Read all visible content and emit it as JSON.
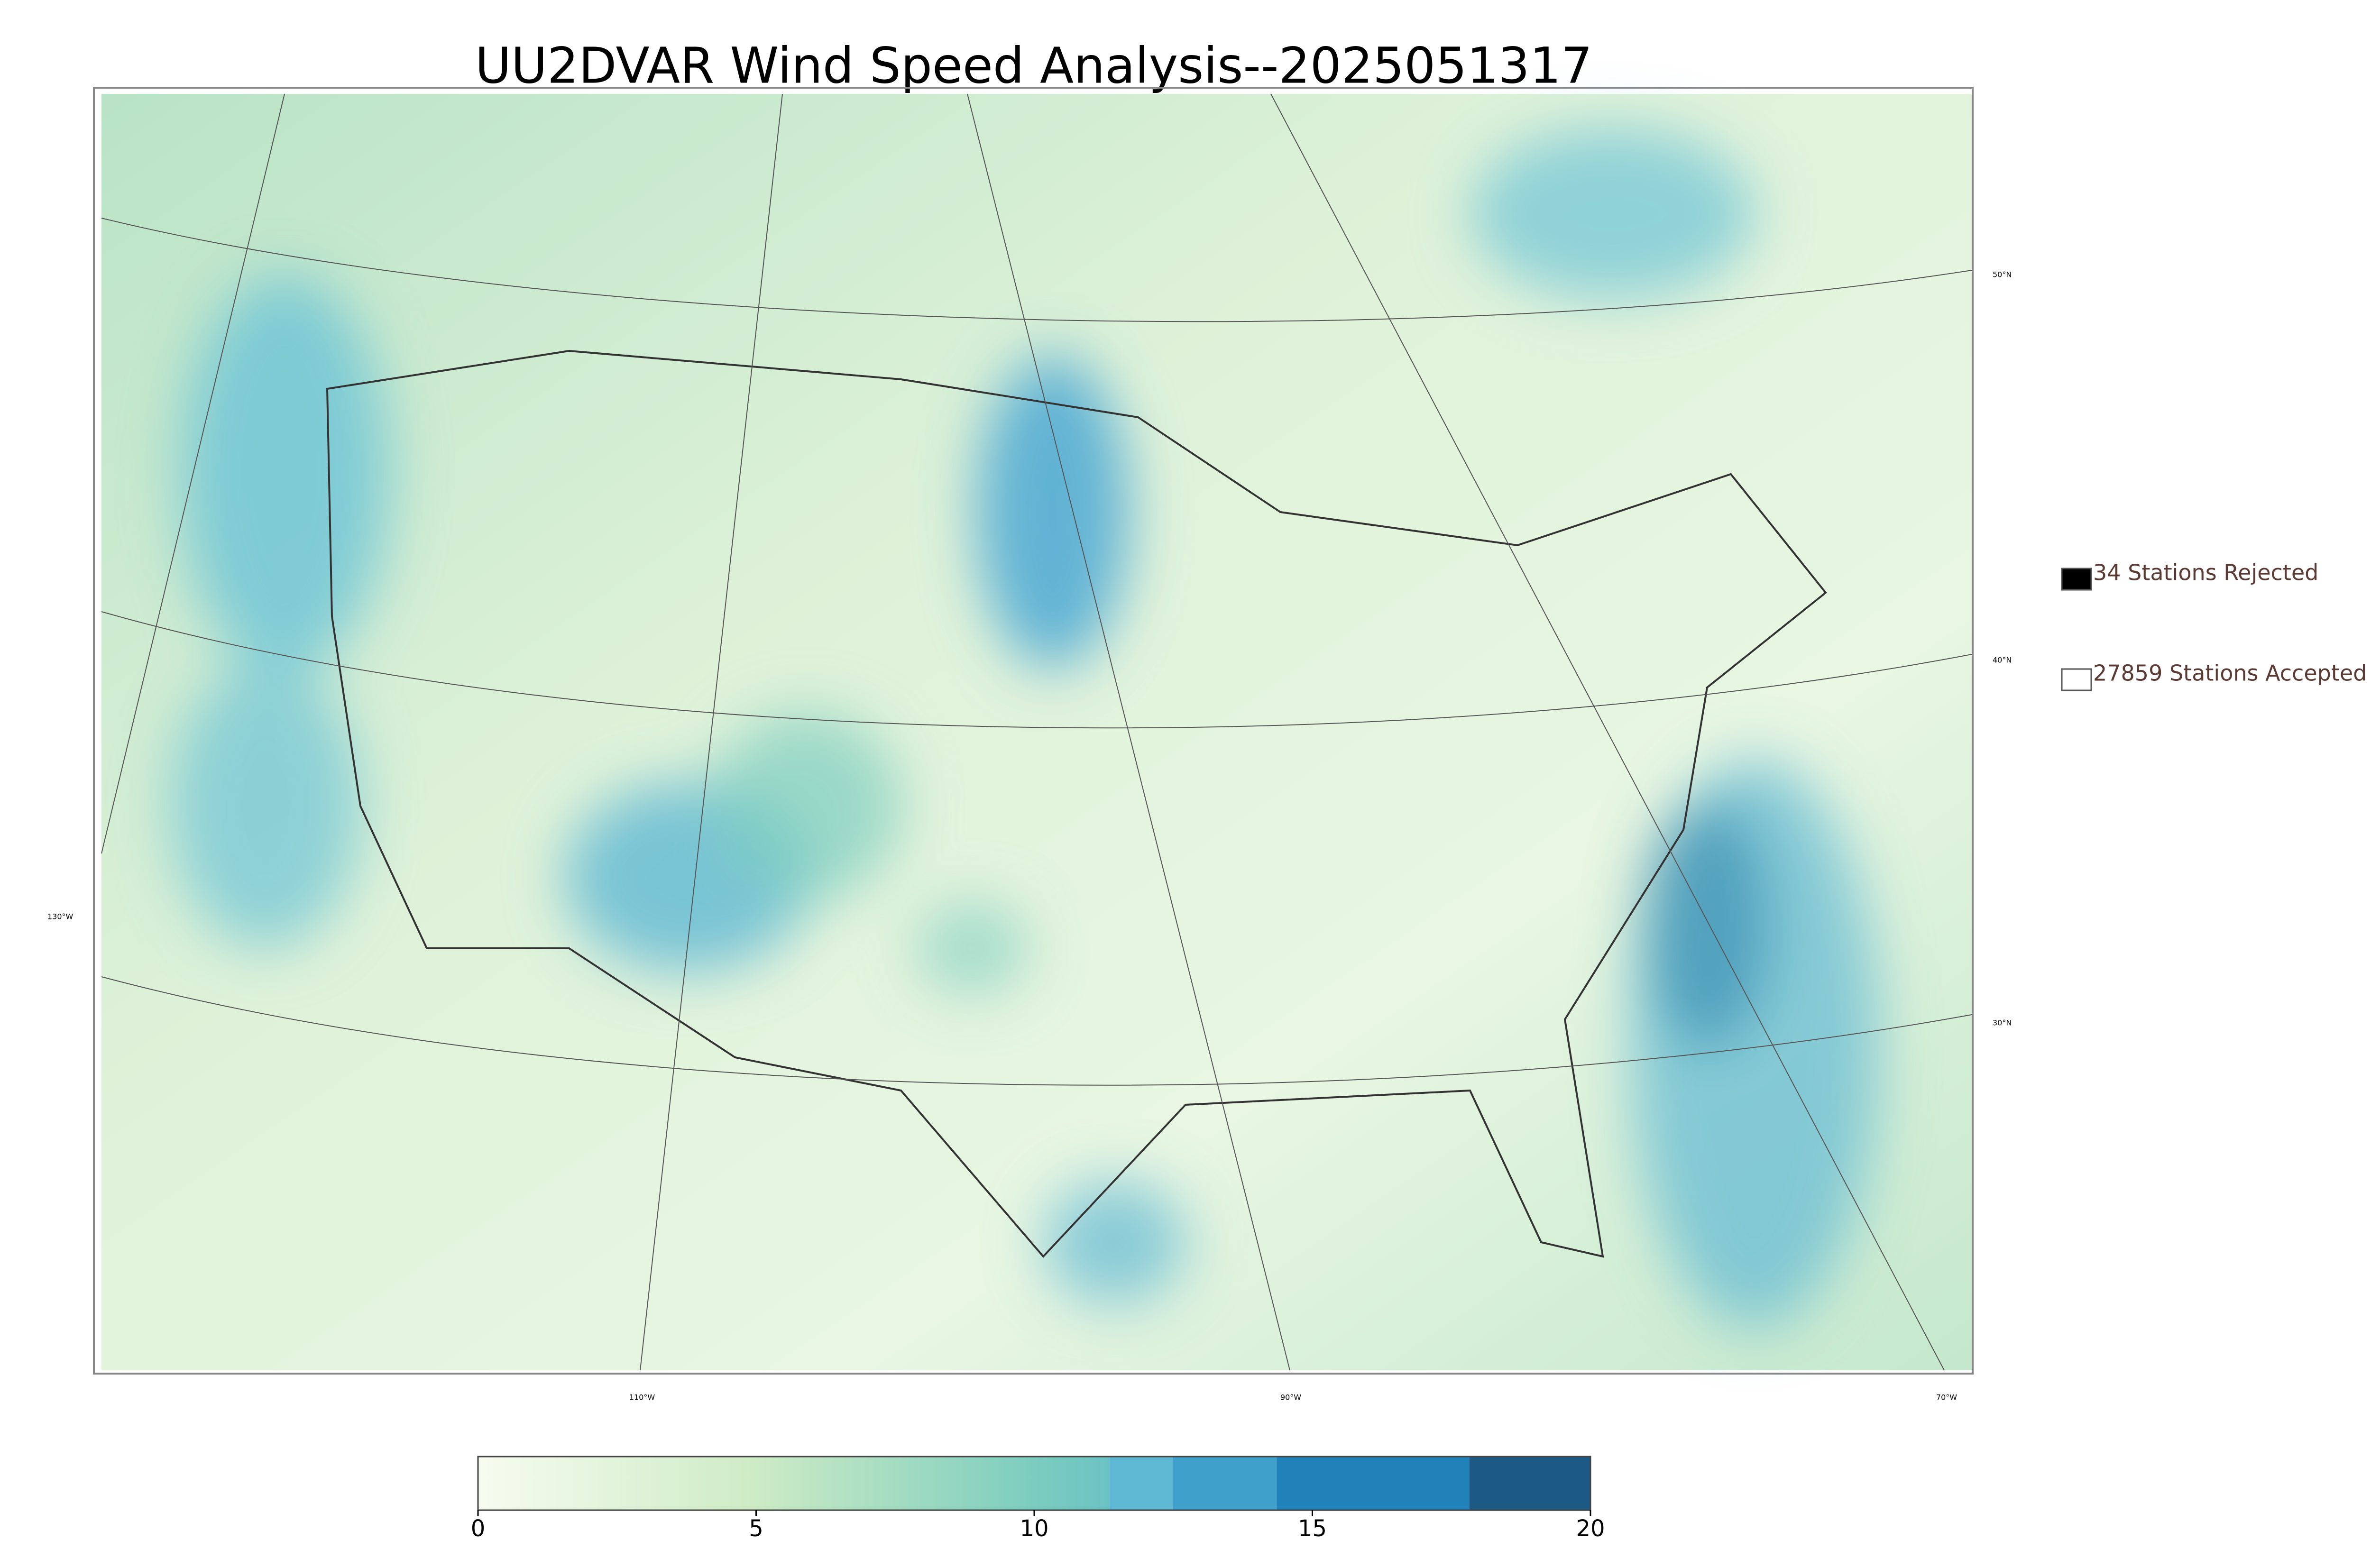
{
  "title": "UU2DVAR Wind Speed Analysis--2025051317",
  "legend": [
    {
      "label": "34 Stations Rejected",
      "fill": "#000000"
    },
    {
      "label": "27859 Stations Accepted",
      "fill": "#ffffff"
    }
  ],
  "lat_labels": [
    "50°N",
    "40°N",
    "30°N"
  ],
  "lon_labels": [
    "130°W",
    "110°W",
    "90°W",
    "70°W"
  ],
  "colorbar": {
    "lim": [
      0,
      20
    ],
    "ticks": [
      0,
      5,
      10,
      15,
      20
    ],
    "gradient": {
      "from": 0,
      "to": 11.35,
      "stops": [
        {
          "at": 0,
          "color": "#f7fcf0"
        },
        {
          "at": 5,
          "color": "#cdebc5"
        },
        {
          "at": 10,
          "color": "#7ccdbf"
        },
        {
          "at": 11.35,
          "color": "#6cc3c4"
        }
      ]
    },
    "segments": [
      {
        "from": 11.35,
        "to": 12.49,
        "color": "#5fb8d3"
      },
      {
        "from": 12.49,
        "to": 14.36,
        "color": "#3fa0cc"
      },
      {
        "from": 14.36,
        "to": 17.82,
        "color": "#2182ba"
      },
      {
        "from": 17.82,
        "to": 20,
        "color": "#1c5984"
      }
    ]
  }
}
